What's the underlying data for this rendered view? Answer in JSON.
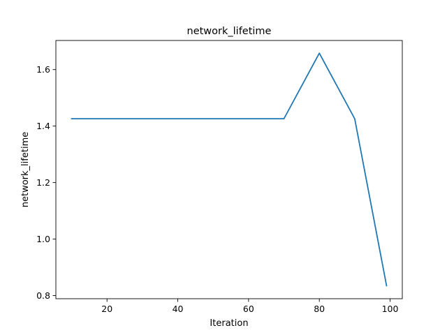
{
  "chart_data": {
    "type": "line",
    "title": "network_lifetime",
    "xlabel": "Iteration",
    "ylabel": "network_lifetime",
    "xlim": [
      5.55,
      103.45
    ],
    "ylim": [
      0.789,
      1.703
    ],
    "xticks": [
      20,
      40,
      60,
      80,
      100
    ],
    "yticks": [
      0.8,
      1.0,
      1.2,
      1.4,
      1.6
    ],
    "xtick_labels": [
      "20",
      "40",
      "60",
      "80",
      "100"
    ],
    "ytick_labels": [
      "0.8",
      "1.0",
      "1.2",
      "1.4",
      "1.6"
    ],
    "grid": false,
    "series": [
      {
        "color": "#1f77b4",
        "x": [
          10,
          20,
          30,
          40,
          50,
          60,
          70,
          80,
          90,
          99
        ],
        "y": [
          1.426,
          1.426,
          1.426,
          1.426,
          1.426,
          1.426,
          1.426,
          1.658,
          1.426,
          0.835
        ]
      }
    ]
  }
}
